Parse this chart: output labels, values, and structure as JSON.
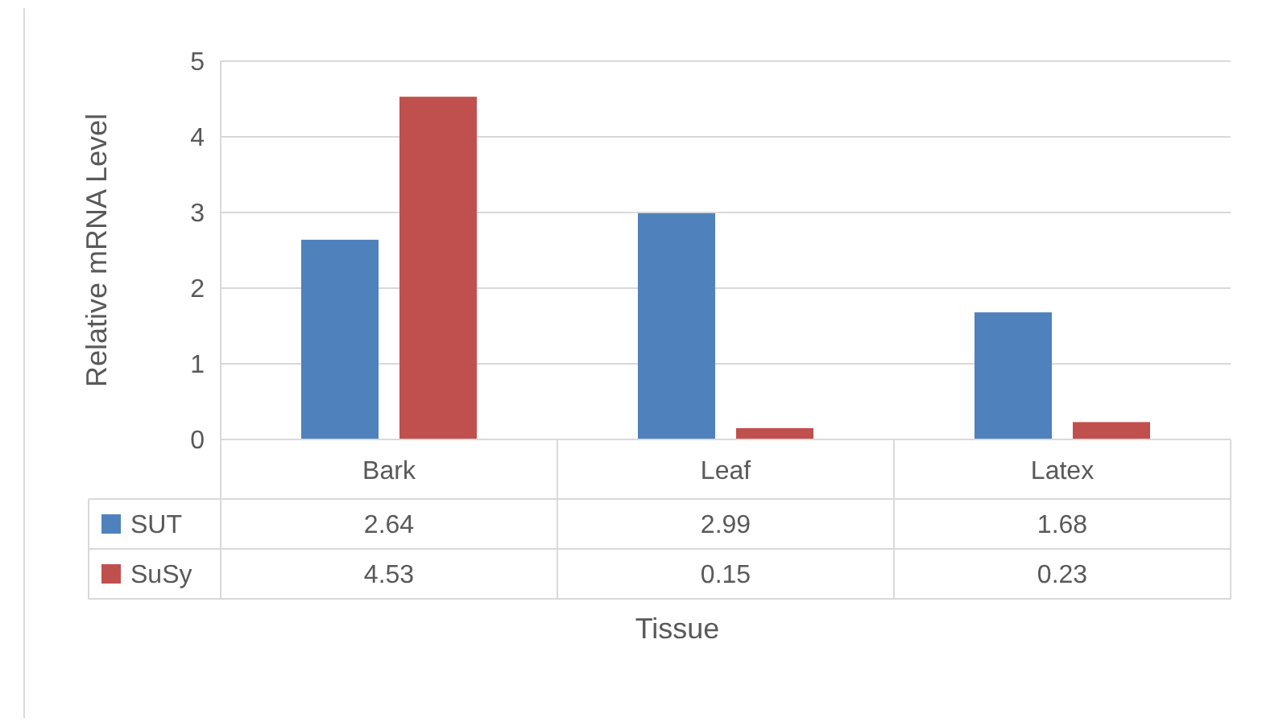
{
  "chart_data": {
    "type": "bar",
    "xlabel": "Tissue",
    "ylabel": "Relative mRNA Level",
    "categories": [
      "Bark",
      "Leaf",
      "Latex"
    ],
    "series": [
      {
        "name": "SUT",
        "color": "#4f81bd",
        "values": [
          2.64,
          2.99,
          1.68
        ]
      },
      {
        "name": "SuSy",
        "color": "#c0504d",
        "values": [
          4.53,
          0.15,
          0.23
        ]
      }
    ],
    "ylim": [
      0,
      5
    ],
    "yticks": [
      0,
      1,
      2,
      3,
      4,
      5
    ],
    "grid": "y",
    "data_labels": true,
    "legend": "bottom"
  }
}
